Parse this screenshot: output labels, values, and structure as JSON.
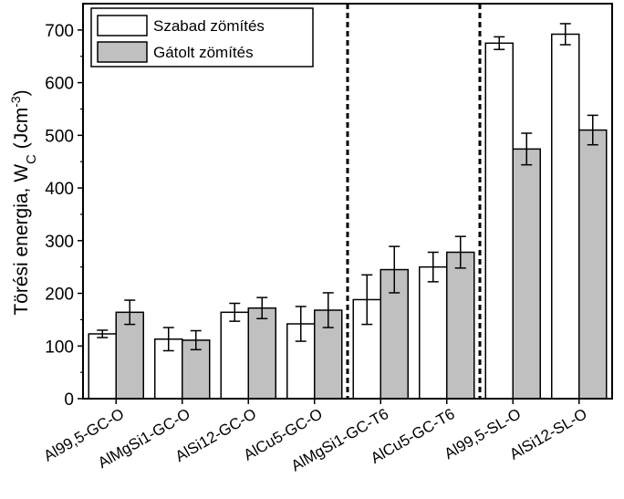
{
  "chart_data": {
    "type": "bar",
    "ylabel": "Törési energia, W_C (Jcm^-3)",
    "ylabel_parts": {
      "main": "Törési energia, W",
      "subscript": "C",
      "unit_open": " (Jcm",
      "superscript": "-3",
      "unit_close": ")"
    },
    "ylim": [
      0,
      750
    ],
    "yticks": [
      "0",
      "100",
      "200",
      "300",
      "400",
      "500",
      "600",
      "700"
    ],
    "categories": [
      "Al99,5-GC-O",
      "AlMgSi1-GC-O",
      "AlSi12-GC-O",
      "AlCu5-GC-O",
      "AlMgSi1-GC-T6",
      "AlCu5-GC-T6",
      "Al99,5-SL-O",
      "AlSi12-SL-O"
    ],
    "series": [
      {
        "name": "Szabad zömítés",
        "color": "#ffffff",
        "values": [
          123,
          113,
          164,
          142,
          188,
          250,
          675,
          692
        ],
        "errors": [
          7,
          22,
          17,
          33,
          47,
          28,
          12,
          20
        ]
      },
      {
        "name": "Gátolt zömítés",
        "color": "#c0c0c0",
        "values": [
          164,
          111,
          172,
          168,
          245,
          278,
          474,
          510
        ],
        "errors": [
          23,
          18,
          20,
          33,
          44,
          30,
          30,
          28
        ]
      }
    ],
    "separators_after_category_index": [
      3,
      5
    ],
    "legend_position": "top-left",
    "grid": false
  }
}
